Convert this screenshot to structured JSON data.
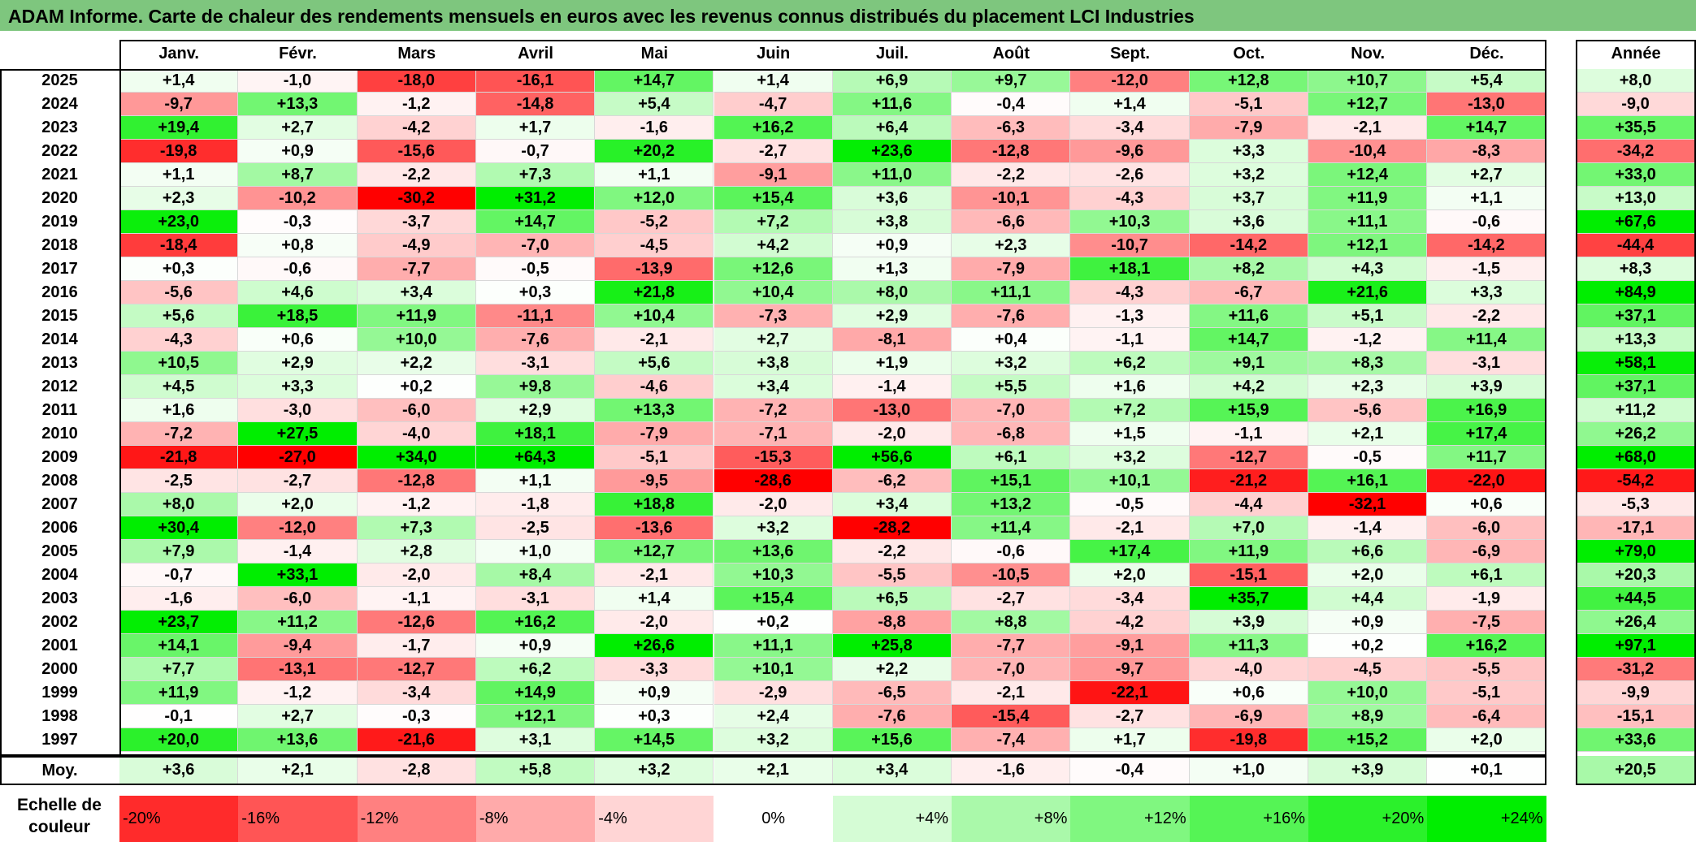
{
  "title": "ADAM Informe. Carte de chaleur des rendements mensuels en euros avec les revenus connus distribués du placement LCI Industries",
  "chart_data": {
    "type": "heatmap",
    "title": "ADAM Informe. Carte de chaleur des rendements mensuels en euros avec les revenus connus distribués du placement LCI Industries",
    "columns": [
      "Janv.",
      "Févr.",
      "Mars",
      "Avril",
      "Mai",
      "Juin",
      "Juil.",
      "Août",
      "Sept.",
      "Oct.",
      "Nov.",
      "Déc."
    ],
    "annual_label": "Année",
    "rows": [
      {
        "year": "2025",
        "values": [
          "+1,4",
          "-1,0",
          "-18,0",
          "-16,1",
          "+14,7",
          "+1,4",
          "+6,9",
          "+9,7",
          "-12,0",
          "+12,8",
          "+10,7",
          "+5,4"
        ],
        "annual": "+8,0"
      },
      {
        "year": "2024",
        "values": [
          "-9,7",
          "+13,3",
          "-1,2",
          "-14,8",
          "+5,4",
          "-4,7",
          "+11,6",
          "-0,4",
          "+1,4",
          "-5,1",
          "+12,7",
          "-13,0"
        ],
        "annual": "-9,0"
      },
      {
        "year": "2023",
        "values": [
          "+19,4",
          "+2,7",
          "-4,2",
          "+1,7",
          "-1,6",
          "+16,2",
          "+6,4",
          "-6,3",
          "-3,4",
          "-7,9",
          "-2,1",
          "+14,7"
        ],
        "annual": "+35,5"
      },
      {
        "year": "2022",
        "values": [
          "-19,8",
          "+0,9",
          "-15,6",
          "-0,7",
          "+20,2",
          "-2,7",
          "+23,6",
          "-12,8",
          "-9,6",
          "+3,3",
          "-10,4",
          "-8,3"
        ],
        "annual": "-34,2"
      },
      {
        "year": "2021",
        "values": [
          "+1,1",
          "+8,7",
          "-2,2",
          "+7,3",
          "+1,1",
          "-9,1",
          "+11,0",
          "-2,2",
          "-2,6",
          "+3,2",
          "+12,4",
          "+2,7"
        ],
        "annual": "+33,0"
      },
      {
        "year": "2020",
        "values": [
          "+2,3",
          "-10,2",
          "-30,2",
          "+31,2",
          "+12,0",
          "+15,4",
          "+3,6",
          "-10,1",
          "-4,3",
          "+3,7",
          "+11,9",
          "+1,1"
        ],
        "annual": "+13,0"
      },
      {
        "year": "2019",
        "values": [
          "+23,0",
          "-0,3",
          "-3,7",
          "+14,7",
          "-5,2",
          "+7,2",
          "+3,8",
          "-6,6",
          "+10,3",
          "+3,6",
          "+11,1",
          "-0,6"
        ],
        "annual": "+67,6"
      },
      {
        "year": "2018",
        "values": [
          "-18,4",
          "+0,8",
          "-4,9",
          "-7,0",
          "-4,5",
          "+4,2",
          "+0,9",
          "+2,3",
          "-10,7",
          "-14,2",
          "+12,1",
          "-14,2"
        ],
        "annual": "-44,4"
      },
      {
        "year": "2017",
        "values": [
          "+0,3",
          "-0,6",
          "-7,7",
          "-0,5",
          "-13,9",
          "+12,6",
          "+1,3",
          "-7,9",
          "+18,1",
          "+8,2",
          "+4,3",
          "-1,5"
        ],
        "annual": "+8,3"
      },
      {
        "year": "2016",
        "values": [
          "-5,6",
          "+4,6",
          "+3,4",
          "+0,3",
          "+21,8",
          "+10,4",
          "+8,0",
          "+11,1",
          "-4,3",
          "-6,7",
          "+21,6",
          "+3,3"
        ],
        "annual": "+84,9"
      },
      {
        "year": "2015",
        "values": [
          "+5,6",
          "+18,5",
          "+11,9",
          "-11,1",
          "+10,4",
          "-7,3",
          "+2,9",
          "-7,6",
          "-1,3",
          "+11,6",
          "+5,1",
          "-2,2"
        ],
        "annual": "+37,1"
      },
      {
        "year": "2014",
        "values": [
          "-4,3",
          "+0,6",
          "+10,0",
          "-7,6",
          "-2,1",
          "+2,7",
          "-8,1",
          "+0,4",
          "-1,1",
          "+14,7",
          "-1,2",
          "+11,4"
        ],
        "annual": "+13,3"
      },
      {
        "year": "2013",
        "values": [
          "+10,5",
          "+2,9",
          "+2,2",
          "-3,1",
          "+5,6",
          "+3,8",
          "+1,9",
          "+3,2",
          "+6,2",
          "+9,1",
          "+8,3",
          "-3,1"
        ],
        "annual": "+58,1"
      },
      {
        "year": "2012",
        "values": [
          "+4,5",
          "+3,3",
          "+0,2",
          "+9,8",
          "-4,6",
          "+3,4",
          "-1,4",
          "+5,5",
          "+1,6",
          "+4,2",
          "+2,3",
          "+3,9"
        ],
        "annual": "+37,1"
      },
      {
        "year": "2011",
        "values": [
          "+1,6",
          "-3,0",
          "-6,0",
          "+2,9",
          "+13,3",
          "-7,2",
          "-13,0",
          "-7,0",
          "+7,2",
          "+15,9",
          "-5,6",
          "+16,9"
        ],
        "annual": "+11,2"
      },
      {
        "year": "2010",
        "values": [
          "-7,2",
          "+27,5",
          "-4,0",
          "+18,1",
          "-7,9",
          "-7,1",
          "-2,0",
          "-6,8",
          "+1,5",
          "-1,1",
          "+2,1",
          "+17,4"
        ],
        "annual": "+26,2"
      },
      {
        "year": "2009",
        "values": [
          "-21,8",
          "-27,0",
          "+34,0",
          "+64,3",
          "-5,1",
          "-15,3",
          "+56,6",
          "+6,1",
          "+3,2",
          "-12,7",
          "-0,5",
          "+11,7"
        ],
        "annual": "+68,0"
      },
      {
        "year": "2008",
        "values": [
          "-2,5",
          "-2,7",
          "-12,8",
          "+1,1",
          "-9,5",
          "-28,6",
          "-6,2",
          "+15,1",
          "+10,1",
          "-21,2",
          "+16,1",
          "-22,0"
        ],
        "annual": "-54,2"
      },
      {
        "year": "2007",
        "values": [
          "+8,0",
          "+2,0",
          "-1,2",
          "-1,8",
          "+18,8",
          "-2,0",
          "+3,4",
          "+13,2",
          "-0,5",
          "-4,4",
          "-32,1",
          "+0,6"
        ],
        "annual": "-5,3"
      },
      {
        "year": "2006",
        "values": [
          "+30,4",
          "-12,0",
          "+7,3",
          "-2,5",
          "-13,6",
          "+3,2",
          "-28,2",
          "+11,4",
          "-2,1",
          "+7,0",
          "-1,4",
          "-6,0"
        ],
        "annual": "-17,1"
      },
      {
        "year": "2005",
        "values": [
          "+7,9",
          "-1,4",
          "+2,8",
          "+1,0",
          "+12,7",
          "+13,6",
          "-2,2",
          "-0,6",
          "+17,4",
          "+11,9",
          "+6,6",
          "-6,9"
        ],
        "annual": "+79,0"
      },
      {
        "year": "2004",
        "values": [
          "-0,7",
          "+33,1",
          "-2,0",
          "+8,4",
          "-2,1",
          "+10,3",
          "-5,5",
          "-10,5",
          "+2,0",
          "-15,1",
          "+2,0",
          "+6,1"
        ],
        "annual": "+20,3"
      },
      {
        "year": "2003",
        "values": [
          "-1,6",
          "-6,0",
          "-1,1",
          "-3,1",
          "+1,4",
          "+15,4",
          "+6,5",
          "-2,7",
          "-3,4",
          "+35,7",
          "+4,4",
          "-1,9"
        ],
        "annual": "+44,5"
      },
      {
        "year": "2002",
        "values": [
          "+23,7",
          "+11,2",
          "-12,6",
          "+16,2",
          "-2,0",
          "+0,2",
          "-8,8",
          "+8,8",
          "-4,2",
          "+3,9",
          "+0,9",
          "-7,5"
        ],
        "annual": "+26,4"
      },
      {
        "year": "2001",
        "values": [
          "+14,1",
          "-9,4",
          "-1,7",
          "+0,9",
          "+26,6",
          "+11,1",
          "+25,8",
          "-7,7",
          "-9,1",
          "+11,3",
          "+0,2",
          "+16,2"
        ],
        "annual": "+97,1"
      },
      {
        "year": "2000",
        "values": [
          "+7,7",
          "-13,1",
          "-12,7",
          "+6,2",
          "-3,3",
          "+10,1",
          "+2,2",
          "-7,0",
          "-9,7",
          "-4,0",
          "-4,5",
          "-5,5"
        ],
        "annual": "-31,2"
      },
      {
        "year": "1999",
        "values": [
          "+11,9",
          "-1,2",
          "-3,4",
          "+14,9",
          "+0,9",
          "-2,9",
          "-6,5",
          "-2,1",
          "-22,1",
          "+0,6",
          "+10,0",
          "-5,1"
        ],
        "annual": "-9,9"
      },
      {
        "year": "1998",
        "values": [
          "-0,1",
          "+2,7",
          "-0,3",
          "+12,1",
          "+0,3",
          "+2,4",
          "-7,6",
          "-15,4",
          "-2,7",
          "-6,9",
          "+8,9",
          "-6,4"
        ],
        "annual": "-15,1"
      },
      {
        "year": "1997",
        "values": [
          "+20,0",
          "+13,6",
          "-21,6",
          "+3,1",
          "+14,5",
          "+3,2",
          "+15,6",
          "-7,4",
          "+1,7",
          "-19,8",
          "+15,2",
          "+2,0"
        ],
        "annual": "+33,6"
      }
    ],
    "average": {
      "label": "Moy.",
      "values": [
        "+3,6",
        "+2,1",
        "-2,8",
        "+5,8",
        "+3,2",
        "+2,1",
        "+3,4",
        "-1,6",
        "-0,4",
        "+1,0",
        "+3,9",
        "+0,1"
      ],
      "annual": "+20,5"
    },
    "scale": {
      "label_line1": "Echelle de",
      "label_line2": "couleur",
      "stops": [
        "-20%",
        "-16%",
        "-12%",
        "-8%",
        "-4%",
        "0%",
        "+4%",
        "+8%",
        "+12%",
        "+16%",
        "+20%",
        "+24%"
      ],
      "stop_values": [
        -20,
        -16,
        -12,
        -8,
        -4,
        0,
        4,
        8,
        12,
        16,
        20,
        24
      ]
    },
    "colors": {
      "negative_max": "#ff0000",
      "neutral": "#ffffff",
      "positive_max": "#00ee00",
      "title_bar": "#7ec67e"
    }
  }
}
